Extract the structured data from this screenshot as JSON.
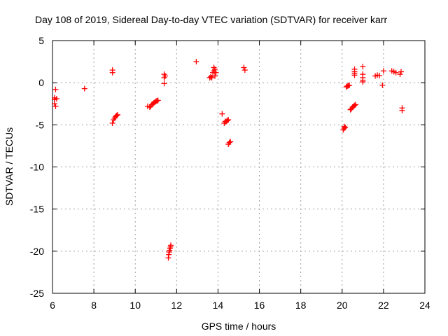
{
  "chart_data": {
    "type": "scatter",
    "title": "Day 108 of 2019, Sidereal Day-to-day VTEC variation (SDTVAR) for receiver karr",
    "xlabel": "GPS time / hours",
    "ylabel": "SDTVAR / TECUs",
    "xlim": [
      6,
      24
    ],
    "ylim": [
      -25,
      5
    ],
    "xticks": [
      6,
      8,
      10,
      12,
      14,
      16,
      18,
      20,
      22,
      24
    ],
    "yticks": [
      5,
      0,
      -5,
      -10,
      -15,
      -20,
      -25
    ],
    "grid": true,
    "marker": "+",
    "color": "#ff0000",
    "series": [
      {
        "name": "SDTVAR",
        "points": [
          [
            6.1,
            -1.8
          ],
          [
            6.1,
            -2.0
          ],
          [
            6.1,
            -2.5
          ],
          [
            6.15,
            -0.8
          ],
          [
            6.15,
            -2.8
          ],
          [
            6.2,
            -1.9
          ],
          [
            7.55,
            -0.7
          ],
          [
            8.9,
            1.5
          ],
          [
            8.9,
            1.2
          ],
          [
            8.9,
            -4.8
          ],
          [
            8.95,
            -4.4
          ],
          [
            9.0,
            -4.2
          ],
          [
            9.05,
            -4.0
          ],
          [
            9.1,
            -3.9
          ],
          [
            9.15,
            -3.8
          ],
          [
            10.6,
            -2.8
          ],
          [
            10.7,
            -2.9
          ],
          [
            10.75,
            -2.8
          ],
          [
            10.8,
            -2.6
          ],
          [
            10.85,
            -2.5
          ],
          [
            10.9,
            -2.4
          ],
          [
            10.95,
            -2.3
          ],
          [
            11.0,
            -2.2
          ],
          [
            11.05,
            -2.15
          ],
          [
            11.1,
            -2.1
          ],
          [
            11.4,
            1.0
          ],
          [
            11.4,
            0.6
          ],
          [
            11.45,
            0.8
          ],
          [
            11.4,
            -0.1
          ],
          [
            11.6,
            -20.8
          ],
          [
            11.62,
            -20.4
          ],
          [
            11.64,
            -20.1
          ],
          [
            11.66,
            -19.9
          ],
          [
            11.68,
            -19.7
          ],
          [
            11.7,
            -19.5
          ],
          [
            11.72,
            -19.3
          ],
          [
            12.95,
            2.5
          ],
          [
            13.6,
            0.6
          ],
          [
            13.65,
            0.7
          ],
          [
            13.7,
            0.6
          ],
          [
            13.75,
            1.2
          ],
          [
            13.8,
            1.4
          ],
          [
            13.8,
            1.8
          ],
          [
            13.85,
            1.6
          ],
          [
            13.85,
            0.8
          ],
          [
            13.9,
            1.2
          ],
          [
            14.2,
            -3.7
          ],
          [
            14.3,
            -4.8
          ],
          [
            14.35,
            -4.6
          ],
          [
            14.4,
            -4.6
          ],
          [
            14.45,
            -4.5
          ],
          [
            14.5,
            -4.4
          ],
          [
            14.5,
            -7.3
          ],
          [
            14.55,
            -7.1
          ],
          [
            14.6,
            -7.0
          ],
          [
            15.25,
            1.8
          ],
          [
            15.3,
            1.5
          ],
          [
            20.05,
            -5.6
          ],
          [
            20.1,
            -5.4
          ],
          [
            20.1,
            -5.2
          ],
          [
            20.15,
            -5.3
          ],
          [
            20.2,
            -0.5
          ],
          [
            20.25,
            -0.4
          ],
          [
            20.3,
            -0.35
          ],
          [
            20.35,
            -0.3
          ],
          [
            20.4,
            -3.2
          ],
          [
            20.45,
            -3.1
          ],
          [
            20.5,
            -2.9
          ],
          [
            20.55,
            -2.8
          ],
          [
            20.6,
            -2.7
          ],
          [
            20.65,
            -2.6
          ],
          [
            20.6,
            1.6
          ],
          [
            20.6,
            1.3
          ],
          [
            20.6,
            0.9
          ],
          [
            20.6,
            1.1
          ],
          [
            21.0,
            1.9
          ],
          [
            21.0,
            1.0
          ],
          [
            21.0,
            0.6
          ],
          [
            21.0,
            0.3
          ],
          [
            21.0,
            0.1
          ],
          [
            21.6,
            0.8
          ],
          [
            21.7,
            0.9
          ],
          [
            21.8,
            0.85
          ],
          [
            21.95,
            -0.3
          ],
          [
            22.0,
            1.4
          ],
          [
            22.4,
            1.4
          ],
          [
            22.5,
            1.3
          ],
          [
            22.6,
            1.2
          ],
          [
            22.8,
            1.0
          ],
          [
            22.85,
            1.3
          ],
          [
            22.9,
            -3.0
          ],
          [
            22.9,
            -3.3
          ]
        ]
      }
    ]
  }
}
